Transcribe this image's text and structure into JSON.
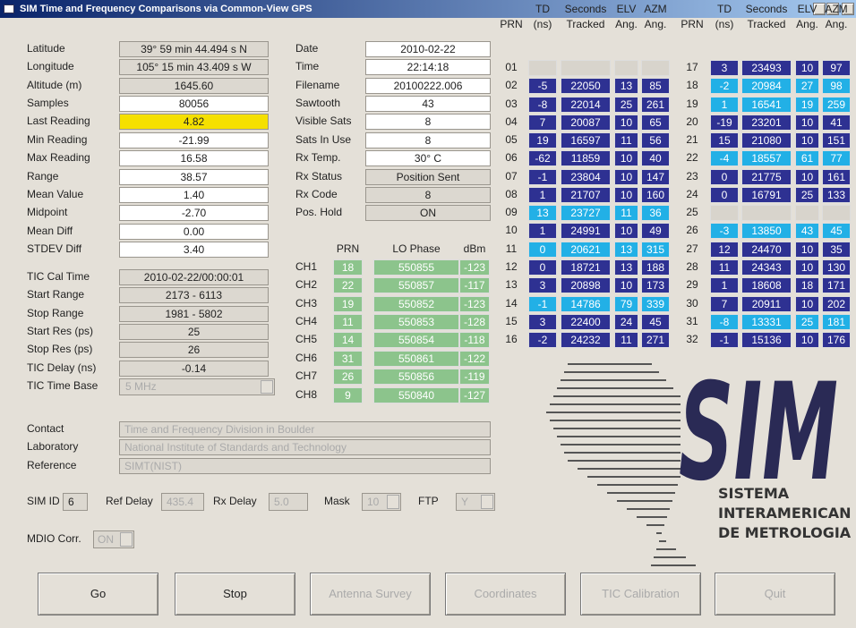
{
  "title_bar": {
    "title": "SIM Time and Frequency Comparisons via Common-View GPS"
  },
  "left_fields": [
    {
      "label": "Latitude",
      "value": "39° 59 min 44.494 s N",
      "color": "#dcd8d0"
    },
    {
      "label": "Longitude",
      "value": "105° 15 min 43.409 s W",
      "color": "#dcd8d0"
    },
    {
      "label": "Altitude (m)",
      "value": "1645.60",
      "color": "#dcd8d0"
    },
    {
      "label": "Samples",
      "value": "80056",
      "color": "#ffffff"
    },
    {
      "label": "Last Reading",
      "value": "4.82",
      "color": "#f5e000"
    },
    {
      "label": "Min Reading",
      "value": "-21.99",
      "color": "#ffffff"
    },
    {
      "label": "Max Reading",
      "value": "16.58",
      "color": "#ffffff"
    },
    {
      "label": "Range",
      "value": "38.57",
      "color": "#ffffff"
    },
    {
      "label": "Mean Value",
      "value": "1.40",
      "color": "#ffffff"
    },
    {
      "label": "Midpoint",
      "value": "-2.70",
      "color": "#ffffff"
    },
    {
      "label": "Mean Diff",
      "value": "0.00",
      "color": "#ffffff"
    },
    {
      "label": "STDEV Diff",
      "value": "3.40",
      "color": "#ffffff"
    }
  ],
  "tic_fields": [
    {
      "label": "TIC Cal Time",
      "value": "2010-02-22/00:00:01"
    },
    {
      "label": "Start Range",
      "value": "2173 - 6113"
    },
    {
      "label": "Stop Range",
      "value": "1981 - 5802"
    },
    {
      "label": "Start Res (ps)",
      "value": "25"
    },
    {
      "label": "Stop Res (ps)",
      "value": "26"
    },
    {
      "label": "TIC Delay (ns)",
      "value": "-0.14"
    }
  ],
  "tic_time_base": {
    "label": "TIC Time Base",
    "value": "5 MHz"
  },
  "middle_fields": [
    {
      "label": "Date",
      "value": "2010-02-22",
      "color": "#ffffff"
    },
    {
      "label": "Time",
      "value": "22:14:18",
      "color": "#ffffff"
    },
    {
      "label": "Filename",
      "value": "20100222.006",
      "color": "#ffffff"
    },
    {
      "label": "Sawtooth",
      "value": "43",
      "color": "#ffffff"
    },
    {
      "label": "Visible Sats",
      "value": "8",
      "color": "#ffffff"
    },
    {
      "label": "Sats In Use",
      "value": "8",
      "color": "#ffffff"
    },
    {
      "label": "Rx Temp.",
      "value": "30° C",
      "color": "#ffffff"
    },
    {
      "label": "Rx Status",
      "value": "Position Sent",
      "color": "#dcd8d0"
    },
    {
      "label": "Rx Code",
      "value": "8",
      "color": "#dcd8d0"
    },
    {
      "label": "Pos. Hold",
      "value": "ON",
      "color": "#dcd8d0"
    }
  ],
  "channels": {
    "headers": [
      "PRN",
      "LO Phase",
      "dBm"
    ],
    "rows": [
      [
        "CH1",
        "18",
        "550855",
        "-123"
      ],
      [
        "CH2",
        "22",
        "550857",
        "-117"
      ],
      [
        "CH3",
        "19",
        "550852",
        "-123"
      ],
      [
        "CH4",
        "11",
        "550853",
        "-128"
      ],
      [
        "CH5",
        "14",
        "550854",
        "-118"
      ],
      [
        "CH6",
        "31",
        "550861",
        "-122"
      ],
      [
        "CH7",
        "26",
        "550856",
        "-119"
      ],
      [
        "CH8",
        "9",
        "550840",
        "-127"
      ]
    ]
  },
  "info_fields": [
    {
      "label": "Contact",
      "value": "Time and Frequency Division in Boulder"
    },
    {
      "label": "Laboratory",
      "value": "National Institute of Standards and Technology"
    },
    {
      "label": "Reference",
      "value": "SIMT(NIST)"
    }
  ],
  "settings": [
    {
      "label": "SIM ID",
      "value": "6"
    },
    {
      "label": "Ref Delay",
      "value": "435.4"
    },
    {
      "label": "Rx Delay",
      "value": "5.0"
    },
    {
      "label": "Mask",
      "value": "10"
    },
    {
      "label": "FTP",
      "value": "Y"
    }
  ],
  "mdio": {
    "label": "MDIO Corr.",
    "value": "ON"
  },
  "buttons": [
    {
      "label": "Go",
      "enabled": true
    },
    {
      "label": "Stop",
      "enabled": true
    },
    {
      "label": "Antenna Survey",
      "enabled": false
    },
    {
      "label": "Coordinates",
      "enabled": false
    },
    {
      "label": "TIC Calibration",
      "enabled": false
    },
    {
      "label": "Quit",
      "enabled": false
    }
  ],
  "satellite_tables": [
    {
      "headers": [
        [
          "PRN"
        ],
        [
          "TD",
          "(ns)"
        ],
        [
          "Seconds",
          "Tracked"
        ],
        [
          "ELV",
          "Ang."
        ],
        [
          "AZM",
          "Ang."
        ]
      ],
      "rows": [
        {
          "prn": "01",
          "cells": []
        },
        {
          "prn": "02",
          "cells": [
            "-5",
            "22050",
            "13",
            "85"
          ],
          "color": "#2e3192"
        },
        {
          "prn": "03",
          "cells": [
            "-8",
            "22014",
            "25",
            "261"
          ],
          "color": "#2e3192"
        },
        {
          "prn": "04",
          "cells": [
            "7",
            "20087",
            "10",
            "65"
          ],
          "color": "#2e3192"
        },
        {
          "prn": "05",
          "cells": [
            "19",
            "16597",
            "11",
            "56"
          ],
          "color": "#2e3192"
        },
        {
          "prn": "06",
          "cells": [
            "-62",
            "11859",
            "10",
            "40"
          ],
          "color": "#2e3192"
        },
        {
          "prn": "07",
          "cells": [
            "-1",
            "23804",
            "10",
            "147"
          ],
          "color": "#2e3192"
        },
        {
          "prn": "08",
          "cells": [
            "1",
            "21707",
            "10",
            "160"
          ],
          "color": "#2e3192"
        },
        {
          "prn": "09",
          "cells": [
            "13",
            "23727",
            "11",
            "36"
          ],
          "color": "#22b0e6"
        },
        {
          "prn": "10",
          "cells": [
            "1",
            "24991",
            "10",
            "49"
          ],
          "color": "#2e3192"
        },
        {
          "prn": "11",
          "cells": [
            "0",
            "20621",
            "13",
            "315"
          ],
          "color": "#22b0e6"
        },
        {
          "prn": "12",
          "cells": [
            "0",
            "18721",
            "13",
            "188"
          ],
          "color": "#2e3192"
        },
        {
          "prn": "13",
          "cells": [
            "3",
            "20898",
            "10",
            "173"
          ],
          "color": "#2e3192"
        },
        {
          "prn": "14",
          "cells": [
            "-1",
            "14786",
            "79",
            "339"
          ],
          "color": "#22b0e6"
        },
        {
          "prn": "15",
          "cells": [
            "3",
            "22400",
            "24",
            "45"
          ],
          "color": "#2e3192"
        },
        {
          "prn": "16",
          "cells": [
            "-2",
            "24232",
            "11",
            "271"
          ],
          "color": "#2e3192"
        }
      ]
    },
    {
      "headers": [
        [
          "PRN"
        ],
        [
          "TD",
          "(ns)"
        ],
        [
          "Seconds",
          "Tracked"
        ],
        [
          "ELV",
          "Ang."
        ],
        [
          "AZM",
          "Ang."
        ]
      ],
      "rows": [
        {
          "prn": "17",
          "cells": [
            "3",
            "23493",
            "10",
            "97"
          ],
          "color": "#2e3192"
        },
        {
          "prn": "18",
          "cells": [
            "-2",
            "20984",
            "27",
            "98"
          ],
          "color": "#22b0e6"
        },
        {
          "prn": "19",
          "cells": [
            "1",
            "16541",
            "19",
            "259"
          ],
          "color": "#22b0e6"
        },
        {
          "prn": "20",
          "cells": [
            "-19",
            "23201",
            "10",
            "41"
          ],
          "color": "#2e3192"
        },
        {
          "prn": "21",
          "cells": [
            "15",
            "21080",
            "10",
            "151"
          ],
          "color": "#2e3192"
        },
        {
          "prn": "22",
          "cells": [
            "-4",
            "18557",
            "61",
            "77"
          ],
          "color": "#22b0e6"
        },
        {
          "prn": "23",
          "cells": [
            "0",
            "21775",
            "10",
            "161"
          ],
          "color": "#2e3192"
        },
        {
          "prn": "24",
          "cells": [
            "0",
            "16791",
            "25",
            "133"
          ],
          "color": "#2e3192"
        },
        {
          "prn": "25",
          "cells": []
        },
        {
          "prn": "26",
          "cells": [
            "-3",
            "13850",
            "43",
            "45"
          ],
          "color": "#22b0e6"
        },
        {
          "prn": "27",
          "cells": [
            "12",
            "24470",
            "10",
            "35"
          ],
          "color": "#2e3192"
        },
        {
          "prn": "28",
          "cells": [
            "11",
            "24343",
            "10",
            "130"
          ],
          "color": "#2e3192"
        },
        {
          "prn": "29",
          "cells": [
            "1",
            "18608",
            "18",
            "171"
          ],
          "color": "#2e3192"
        },
        {
          "prn": "30",
          "cells": [
            "7",
            "20911",
            "10",
            "202"
          ],
          "color": "#2e3192"
        },
        {
          "prn": "31",
          "cells": [
            "-8",
            "13331",
            "25",
            "181"
          ],
          "color": "#22b0e6"
        },
        {
          "prn": "32",
          "cells": [
            "-1",
            "15136",
            "10",
            "176"
          ],
          "color": "#2e3192"
        }
      ]
    }
  ],
  "logo": {
    "mark": "SIM",
    "lines": [
      "SISTEMA",
      "INTERAMERICANO",
      "DE METROLOGIA"
    ]
  }
}
